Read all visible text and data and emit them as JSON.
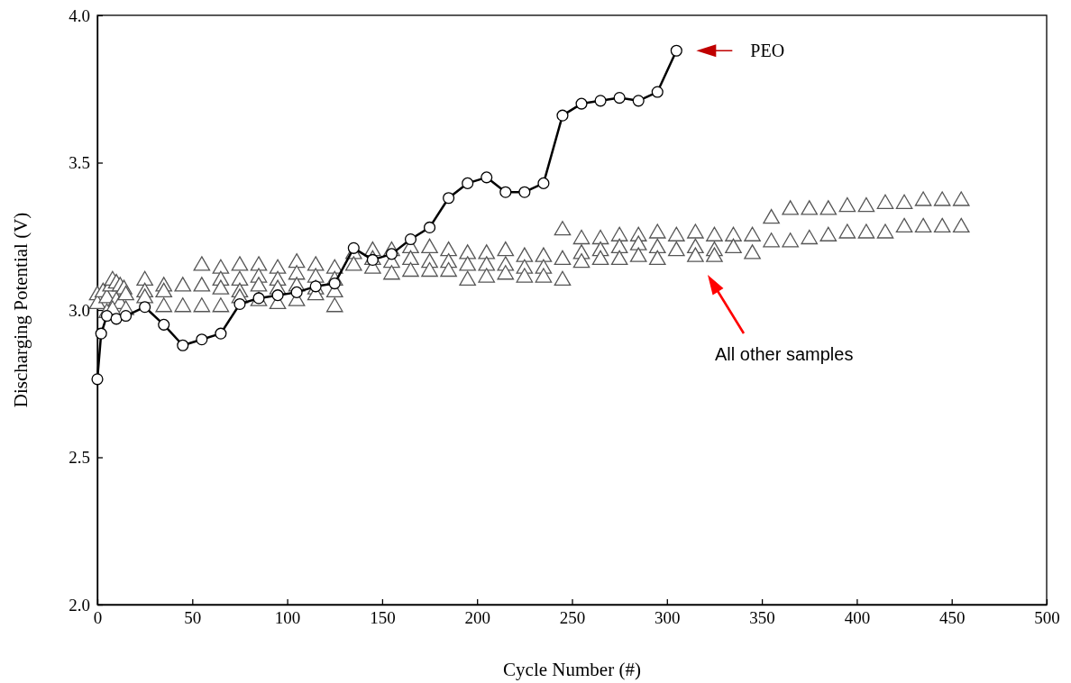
{
  "chart_data": {
    "type": "line",
    "xlabel": "Cycle Number (#)",
    "ylabel": "Discharging Potential (V)",
    "xlim": [
      0,
      500
    ],
    "ylim": [
      2,
      4
    ],
    "xticks": [
      0,
      50,
      100,
      150,
      200,
      250,
      300,
      350,
      400,
      450,
      500
    ],
    "yticks": [
      {
        "value": 2,
        "label": "2.0"
      },
      {
        "value": 2.5,
        "label": "2.5"
      },
      {
        "value": 3,
        "label": "3.0"
      },
      {
        "value": 3.5,
        "label": "3.5"
      },
      {
        "value": 4,
        "label": "4.0"
      }
    ],
    "series": [
      {
        "type": "scatter",
        "marker": "triangle",
        "color": "#555555",
        "x": [
          0,
          0,
          3,
          5,
          7,
          8,
          10,
          12,
          14,
          10,
          12,
          15,
          15,
          5,
          8,
          25,
          25,
          25,
          35,
          35,
          35,
          45,
          45,
          55,
          55,
          55,
          65,
          65,
          65,
          65,
          75,
          75,
          75,
          75,
          85,
          85,
          85,
          85,
          95,
          95,
          95,
          95,
          105,
          105,
          105,
          105,
          115,
          115,
          115,
          115,
          125,
          125,
          125,
          125,
          135,
          135,
          145,
          145,
          145,
          155,
          155,
          155,
          165,
          165,
          165,
          175,
          175,
          175,
          185,
          185,
          185,
          195,
          195,
          195,
          205,
          205,
          205,
          215,
          215,
          215,
          225,
          225,
          225,
          235,
          235,
          235,
          245,
          245,
          245,
          255,
          255,
          255,
          265,
          265,
          265,
          275,
          275,
          275,
          285,
          285,
          285,
          295,
          295,
          295,
          305,
          305,
          315,
          315,
          315,
          325,
          325,
          325,
          335,
          335,
          345,
          345,
          355,
          355,
          365,
          365,
          375,
          375,
          385,
          385,
          395,
          395,
          405,
          405,
          415,
          415,
          425,
          425,
          435,
          435,
          445,
          445,
          455,
          455
        ],
        "values": [
          3.05,
          3.02,
          3.06,
          3.04,
          3.08,
          3.1,
          3.09,
          3.08,
          3.07,
          3.03,
          3.02,
          3.05,
          3.0,
          2.99,
          3.0,
          3.1,
          3.06,
          3.04,
          3.08,
          3.06,
          3.01,
          3.08,
          3.01,
          3.15,
          3.08,
          3.01,
          3.14,
          3.1,
          3.07,
          3.01,
          3.15,
          3.1,
          3.06,
          3.04,
          3.15,
          3.11,
          3.08,
          3.03,
          3.14,
          3.1,
          3.07,
          3.02,
          3.16,
          3.12,
          3.08,
          3.03,
          3.15,
          3.11,
          3.07,
          3.05,
          3.14,
          3.1,
          3.06,
          3.01,
          3.19,
          3.15,
          3.2,
          3.17,
          3.14,
          3.2,
          3.16,
          3.12,
          3.21,
          3.17,
          3.13,
          3.21,
          3.16,
          3.13,
          3.2,
          3.16,
          3.13,
          3.19,
          3.15,
          3.1,
          3.19,
          3.15,
          3.11,
          3.2,
          3.15,
          3.12,
          3.18,
          3.14,
          3.11,
          3.18,
          3.14,
          3.11,
          3.27,
          3.17,
          3.1,
          3.24,
          3.19,
          3.16,
          3.24,
          3.2,
          3.17,
          3.25,
          3.21,
          3.17,
          3.25,
          3.22,
          3.18,
          3.26,
          3.21,
          3.17,
          3.25,
          3.2,
          3.26,
          3.21,
          3.18,
          3.25,
          3.2,
          3.18,
          3.25,
          3.21,
          3.25,
          3.19,
          3.31,
          3.23,
          3.34,
          3.23,
          3.34,
          3.24,
          3.34,
          3.25,
          3.35,
          3.26,
          3.35,
          3.26,
          3.36,
          3.26,
          3.36,
          3.28,
          3.37,
          3.28,
          3.37,
          3.28,
          3.37,
          3.28
        ]
      },
      {
        "marker": "circle",
        "line_style": "solid",
        "color": "#000000",
        "x": [
          0,
          2,
          5,
          10,
          15,
          25,
          35,
          45,
          55,
          65,
          75,
          85,
          95,
          105,
          115,
          125,
          135,
          145,
          155,
          165,
          175,
          185,
          195,
          205,
          215,
          225,
          235,
          245,
          255,
          265,
          275,
          285,
          295,
          305
        ],
        "values": [
          2.765,
          2.92,
          2.98,
          2.97,
          2.98,
          3.01,
          2.95,
          2.88,
          2.9,
          2.92,
          3.02,
          3.04,
          3.05,
          3.06,
          3.08,
          3.09,
          3.21,
          3.17,
          3.19,
          3.24,
          3.28,
          3.38,
          3.43,
          3.45,
          3.4,
          3.4,
          3.43,
          3.66,
          3.7,
          3.71,
          3.72,
          3.71,
          3.74,
          3.88
        ]
      }
    ],
    "annotations": [
      "PEO",
      "All other samples"
    ]
  }
}
